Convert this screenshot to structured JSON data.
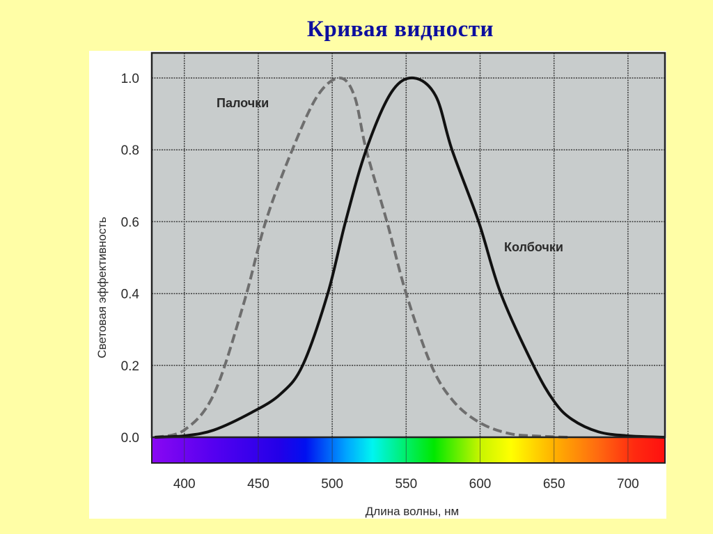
{
  "slide": {
    "title": "Кривая видности",
    "background_color": "#fffea6",
    "title_color": "#0d0f9e"
  },
  "chart_data": {
    "type": "line",
    "title": "Кривая видности",
    "xlabel": "Длина волны, нм",
    "ylabel": "Световая эффективность",
    "xlim": [
      378,
      725
    ],
    "ylim": [
      0.0,
      1.0
    ],
    "x_ticks": [
      400,
      450,
      500,
      550,
      600,
      650,
      700
    ],
    "x_tick_labels": [
      "400",
      "450",
      "500",
      "550",
      "600",
      "650",
      "700"
    ],
    "y_ticks": [
      0.0,
      0.2,
      0.4,
      0.6,
      0.8,
      1.0
    ],
    "y_tick_labels": [
      "0.0",
      "0.2",
      "0.4",
      "0.6",
      "0.8",
      "1.0"
    ],
    "grid": true,
    "plot_background": "#c8cccc",
    "spectrum_bar": true,
    "series": [
      {
        "name": "Палочки",
        "style": "dashed",
        "color": "#6e6e6e",
        "x": [
          380,
          400,
          420,
          440,
          455,
          473,
          490,
          505,
          515,
          523,
          537,
          550,
          567,
          582,
          600,
          620,
          640,
          660
        ],
        "values": [
          0.0,
          0.02,
          0.12,
          0.37,
          0.6,
          0.8,
          0.95,
          1.0,
          0.95,
          0.8,
          0.6,
          0.4,
          0.2,
          0.1,
          0.04,
          0.01,
          0.003,
          0.0
        ]
      },
      {
        "name": "Колбочки",
        "style": "solid",
        "color": "#111111",
        "x": [
          380,
          400,
          420,
          446,
          465,
          480,
          497,
          509,
          523,
          540,
          555,
          570,
          581,
          599,
          614,
          636,
          650,
          662,
          680,
          700,
          725
        ],
        "values": [
          0.0,
          0.004,
          0.02,
          0.07,
          0.12,
          0.2,
          0.4,
          0.6,
          0.8,
          0.96,
          1.0,
          0.95,
          0.8,
          0.6,
          0.4,
          0.2,
          0.1,
          0.05,
          0.015,
          0.004,
          0.0
        ]
      }
    ],
    "annotations": [
      {
        "text": "Палочки",
        "x": 490,
        "y": 0.93
      },
      {
        "text": "Колбочки",
        "x": 610,
        "y": 0.53
      }
    ]
  }
}
